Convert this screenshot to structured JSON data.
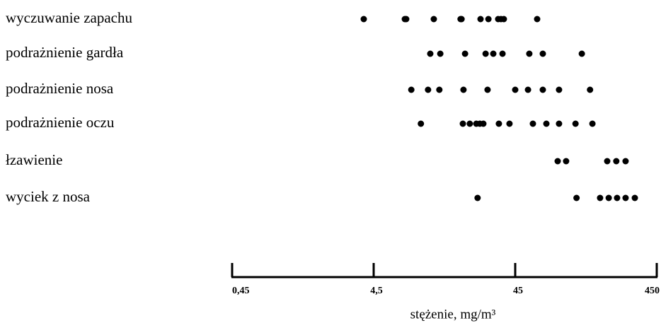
{
  "chart_data": {
    "type": "dot",
    "log_x": true,
    "color": "#000000",
    "xlabel": "stężenie, mg/m³",
    "categories": [
      "wyczuwanie zapachu",
      "podrażnienie gardła",
      "podrażnienie nosa",
      "podrażnienie oczu",
      "łzawienie",
      "wyciek z nosa"
    ],
    "values": [
      [
        3.83,
        7.47,
        7.64,
        11.97,
        18.5,
        18.8,
        25.6,
        29.1,
        34.1,
        35.7,
        37.4,
        64.3
      ],
      [
        11.3,
        13.3,
        19.9,
        27.8,
        31.5,
        36.6,
        56.6,
        70.5,
        133
      ],
      [
        8.3,
        10.9,
        13.1,
        19.4,
        28.7,
        45,
        55.4,
        70.5,
        91.8,
        152
      ],
      [
        9.7,
        19.2,
        21.5,
        23.9,
        25.3,
        26.8,
        34.5,
        41.0,
        60.0,
        74.7,
        91.8,
        120,
        158
      ],
      [
        89.8,
        103,
        201,
        233,
        271
      ],
      [
        24.4,
        122,
        179,
        206,
        236,
        271,
        315
      ]
    ],
    "xlim": [
      0.45,
      450
    ],
    "xticks": [
      {
        "value": 0.45,
        "label": "0,45"
      },
      {
        "value": 4.5,
        "label": "4,5"
      },
      45,
      450
    ]
  }
}
